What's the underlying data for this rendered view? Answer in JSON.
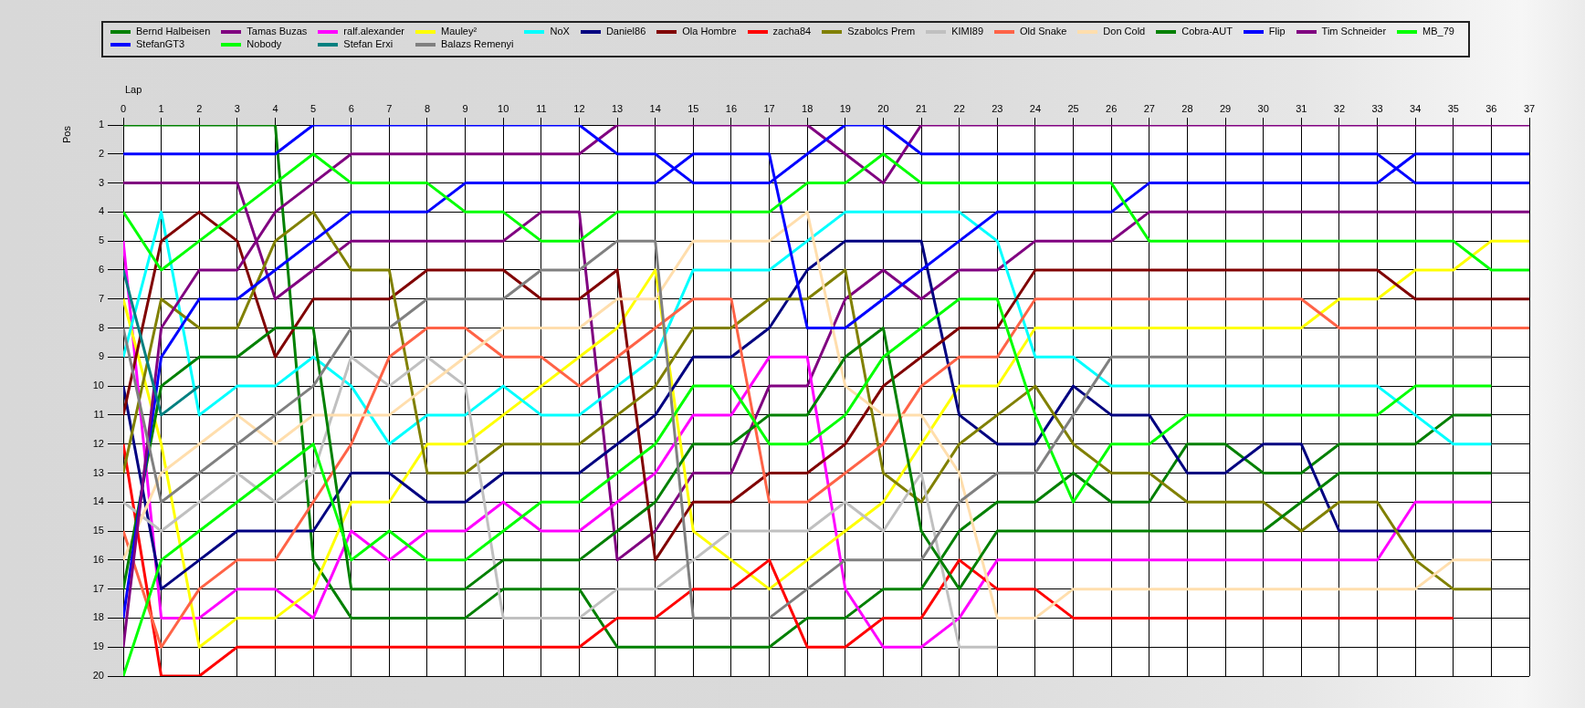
{
  "chart_data": {
    "type": "line",
    "xlabel": "Lap",
    "ylabel": "Pos",
    "x": [
      0,
      1,
      2,
      3,
      4,
      5,
      6,
      7,
      8,
      9,
      10,
      11,
      12,
      13,
      14,
      15,
      16,
      17,
      18,
      19,
      20,
      21,
      22,
      23,
      24,
      25,
      26,
      27,
      28,
      29,
      30,
      31,
      32,
      33,
      34,
      35,
      36,
      37
    ],
    "xlim": [
      0,
      37
    ],
    "xticks": [
      0,
      1,
      2,
      3,
      4,
      5,
      6,
      7,
      8,
      9,
      10,
      11,
      12,
      13,
      14,
      15,
      16,
      17,
      18,
      19,
      20,
      21,
      22,
      23,
      24,
      25,
      26,
      27,
      28,
      29,
      30,
      31,
      32,
      33,
      34,
      35,
      36,
      37
    ],
    "ylim": [
      20,
      1
    ],
    "yticks": [
      1,
      2,
      3,
      4,
      5,
      6,
      7,
      8,
      9,
      10,
      11,
      12,
      13,
      14,
      15,
      16,
      17,
      18,
      19,
      20
    ],
    "grid": true,
    "legend": "top left",
    "series": [
      {
        "name": "Bernd Halbeisen",
        "color": "#008000",
        "values": [
          1,
          1,
          1,
          1,
          1,
          16,
          18,
          18,
          18,
          18,
          17,
          17,
          17,
          19,
          19,
          19,
          19,
          19,
          18,
          18,
          17,
          17,
          15,
          14,
          14,
          13,
          14,
          14,
          12,
          12,
          13,
          13,
          12,
          12,
          12,
          11,
          11,
          null
        ]
      },
      {
        "name": "Tamas Buzas",
        "color": "#800080",
        "values": [
          3,
          3,
          3,
          3,
          7,
          6,
          5,
          5,
          5,
          5,
          5,
          4,
          4,
          16,
          15,
          13,
          13,
          10,
          10,
          7,
          6,
          7,
          6,
          6,
          5,
          5,
          5,
          4,
          4,
          4,
          4,
          4,
          4,
          4,
          4,
          4,
          4,
          4
        ]
      },
      {
        "name": "ralf.alexander",
        "color": "#ff00ff",
        "values": [
          5,
          18,
          18,
          17,
          17,
          18,
          15,
          16,
          15,
          15,
          14,
          15,
          15,
          14,
          13,
          11,
          11,
          9,
          9,
          17,
          19,
          19,
          18,
          16,
          16,
          16,
          16,
          16,
          16,
          16,
          16,
          16,
          16,
          16,
          14,
          14,
          14,
          null
        ]
      },
      {
        "name": "Mauley²",
        "color": "#ffff00",
        "values": [
          7,
          12,
          19,
          18,
          18,
          17,
          14,
          14,
          12,
          12,
          11,
          10,
          9,
          8,
          6,
          15,
          16,
          17,
          16,
          15,
          14,
          12,
          10,
          10,
          8,
          8,
          8,
          8,
          8,
          8,
          8,
          8,
          7,
          7,
          6,
          6,
          5,
          5
        ]
      },
      {
        "name": "NoX",
        "color": "#00ffff",
        "values": [
          9,
          4,
          11,
          10,
          10,
          9,
          10,
          12,
          11,
          11,
          10,
          11,
          11,
          10,
          9,
          6,
          6,
          6,
          5,
          4,
          4,
          4,
          4,
          5,
          9,
          9,
          10,
          10,
          10,
          10,
          10,
          10,
          10,
          10,
          11,
          12,
          12,
          null
        ]
      },
      {
        "name": "Daniel86",
        "color": "#000080",
        "values": [
          10,
          17,
          16,
          15,
          15,
          15,
          13,
          13,
          14,
          14,
          13,
          13,
          13,
          12,
          11,
          9,
          9,
          8,
          6,
          5,
          5,
          5,
          11,
          12,
          12,
          10,
          11,
          11,
          13,
          13,
          12,
          12,
          15,
          15,
          15,
          15,
          15,
          null
        ]
      },
      {
        "name": "Ola Hombre",
        "color": "#800000",
        "values": [
          11,
          5,
          4,
          5,
          9,
          7,
          7,
          7,
          6,
          6,
          6,
          7,
          7,
          6,
          16,
          14,
          14,
          13,
          13,
          12,
          10,
          9,
          8,
          8,
          6,
          6,
          6,
          6,
          6,
          6,
          6,
          6,
          6,
          6,
          7,
          7,
          7,
          7
        ]
      },
      {
        "name": "zacha84",
        "color": "#ff0000",
        "values": [
          12,
          20,
          20,
          19,
          19,
          19,
          19,
          19,
          19,
          19,
          19,
          19,
          19,
          18,
          18,
          17,
          17,
          16,
          19,
          19,
          18,
          18,
          16,
          17,
          17,
          18,
          18,
          18,
          18,
          18,
          18,
          18,
          18,
          18,
          18,
          18,
          null,
          null
        ]
      },
      {
        "name": "Szabolcs Prem",
        "color": "#808000",
        "values": [
          13,
          7,
          8,
          8,
          5,
          4,
          6,
          6,
          13,
          13,
          12,
          12,
          12,
          11,
          10,
          8,
          8,
          7,
          7,
          6,
          13,
          14,
          12,
          11,
          10,
          12,
          13,
          13,
          14,
          14,
          14,
          15,
          14,
          14,
          16,
          17,
          17,
          null
        ]
      },
      {
        "name": "KIMI89",
        "color": "#c0c0c0",
        "values": [
          14,
          15,
          14,
          13,
          14,
          13,
          9,
          10,
          9,
          10,
          18,
          18,
          18,
          17,
          17,
          16,
          15,
          15,
          15,
          14,
          15,
          13,
          19,
          19,
          null,
          null,
          null,
          null,
          null,
          null,
          null,
          null,
          null,
          null,
          null,
          null,
          null,
          null
        ]
      },
      {
        "name": "Old Snake",
        "color": "#ff6347",
        "values": [
          15,
          19,
          17,
          16,
          16,
          14,
          12,
          9,
          8,
          8,
          9,
          9,
          10,
          9,
          8,
          7,
          7,
          14,
          14,
          13,
          12,
          10,
          9,
          9,
          7,
          7,
          7,
          7,
          7,
          7,
          7,
          7,
          8,
          8,
          8,
          8,
          8,
          8
        ]
      },
      {
        "name": "Don Cold",
        "color": "#ffdead",
        "values": [
          16,
          13,
          12,
          11,
          12,
          11,
          11,
          11,
          10,
          9,
          8,
          8,
          8,
          7,
          7,
          5,
          5,
          5,
          4,
          10,
          11,
          11,
          13,
          18,
          18,
          17,
          17,
          17,
          17,
          17,
          17,
          17,
          17,
          17,
          17,
          16,
          16,
          null
        ]
      },
      {
        "name": "Cobra-AUT",
        "color": "#008000",
        "values": [
          17,
          10,
          9,
          9,
          8,
          8,
          17,
          17,
          17,
          17,
          16,
          16,
          16,
          15,
          14,
          12,
          12,
          11,
          11,
          9,
          8,
          15,
          17,
          15,
          15,
          15,
          15,
          15,
          15,
          15,
          15,
          14,
          13,
          13,
          13,
          13,
          13,
          null
        ]
      },
      {
        "name": "Flip",
        "color": "#0000ff",
        "values": [
          18,
          9,
          7,
          7,
          6,
          5,
          4,
          4,
          4,
          3,
          3,
          3,
          3,
          3,
          3,
          2,
          2,
          2,
          8,
          8,
          7,
          6,
          5,
          4,
          4,
          4,
          4,
          3,
          3,
          3,
          3,
          3,
          3,
          3,
          2,
          2,
          2,
          2
        ]
      },
      {
        "name": "Tim Schneider",
        "color": "#800080",
        "values": [
          19,
          8,
          6,
          6,
          4,
          3,
          2,
          2,
          2,
          2,
          2,
          2,
          2,
          1,
          1,
          1,
          1,
          1,
          1,
          2,
          3,
          1,
          1,
          1,
          1,
          1,
          1,
          1,
          1,
          1,
          1,
          1,
          1,
          1,
          1,
          1,
          1,
          1
        ]
      },
      {
        "name": "MB_79",
        "color": "#00ff00",
        "values": [
          20,
          16,
          15,
          14,
          13,
          12,
          16,
          15,
          16,
          16,
          15,
          14,
          14,
          13,
          12,
          10,
          10,
          12,
          12,
          11,
          9,
          8,
          7,
          7,
          11,
          14,
          12,
          12,
          11,
          11,
          11,
          11,
          11,
          11,
          10,
          10,
          10,
          null
        ]
      },
      {
        "name": "StefanGT3",
        "color": "#0000ff",
        "values": [
          2,
          2,
          2,
          2,
          2,
          1,
          1,
          1,
          1,
          1,
          1,
          1,
          1,
          2,
          2,
          3,
          3,
          3,
          2,
          1,
          1,
          2,
          2,
          2,
          2,
          2,
          2,
          2,
          2,
          2,
          2,
          2,
          2,
          2,
          3,
          3,
          3,
          3
        ]
      },
      {
        "name": "Nobody",
        "color": "#00ff00",
        "values": [
          4,
          6,
          5,
          4,
          3,
          2,
          3,
          3,
          3,
          4,
          4,
          5,
          5,
          4,
          4,
          4,
          4,
          4,
          3,
          3,
          2,
          3,
          3,
          3,
          3,
          3,
          3,
          5,
          5,
          5,
          5,
          5,
          5,
          5,
          5,
          5,
          6,
          6
        ]
      },
      {
        "name": "Stefan Erxi",
        "color": "#008080",
        "values": [
          6,
          11,
          10,
          null,
          null,
          null,
          null,
          null,
          null,
          null,
          null,
          null,
          null,
          null,
          null,
          null,
          null,
          null,
          null,
          null,
          null,
          null,
          null,
          null,
          null,
          null,
          null,
          null,
          null,
          null,
          null,
          null,
          null,
          null,
          null,
          null,
          null,
          null
        ]
      },
      {
        "name": "Balazs Remenyi",
        "color": "#808080",
        "values": [
          8,
          14,
          13,
          12,
          11,
          10,
          8,
          8,
          7,
          7,
          7,
          6,
          6,
          5,
          5,
          18,
          18,
          18,
          17,
          16,
          16,
          16,
          14,
          13,
          13,
          11,
          9,
          9,
          9,
          9,
          9,
          9,
          9,
          9,
          9,
          9,
          9,
          null
        ]
      }
    ]
  }
}
